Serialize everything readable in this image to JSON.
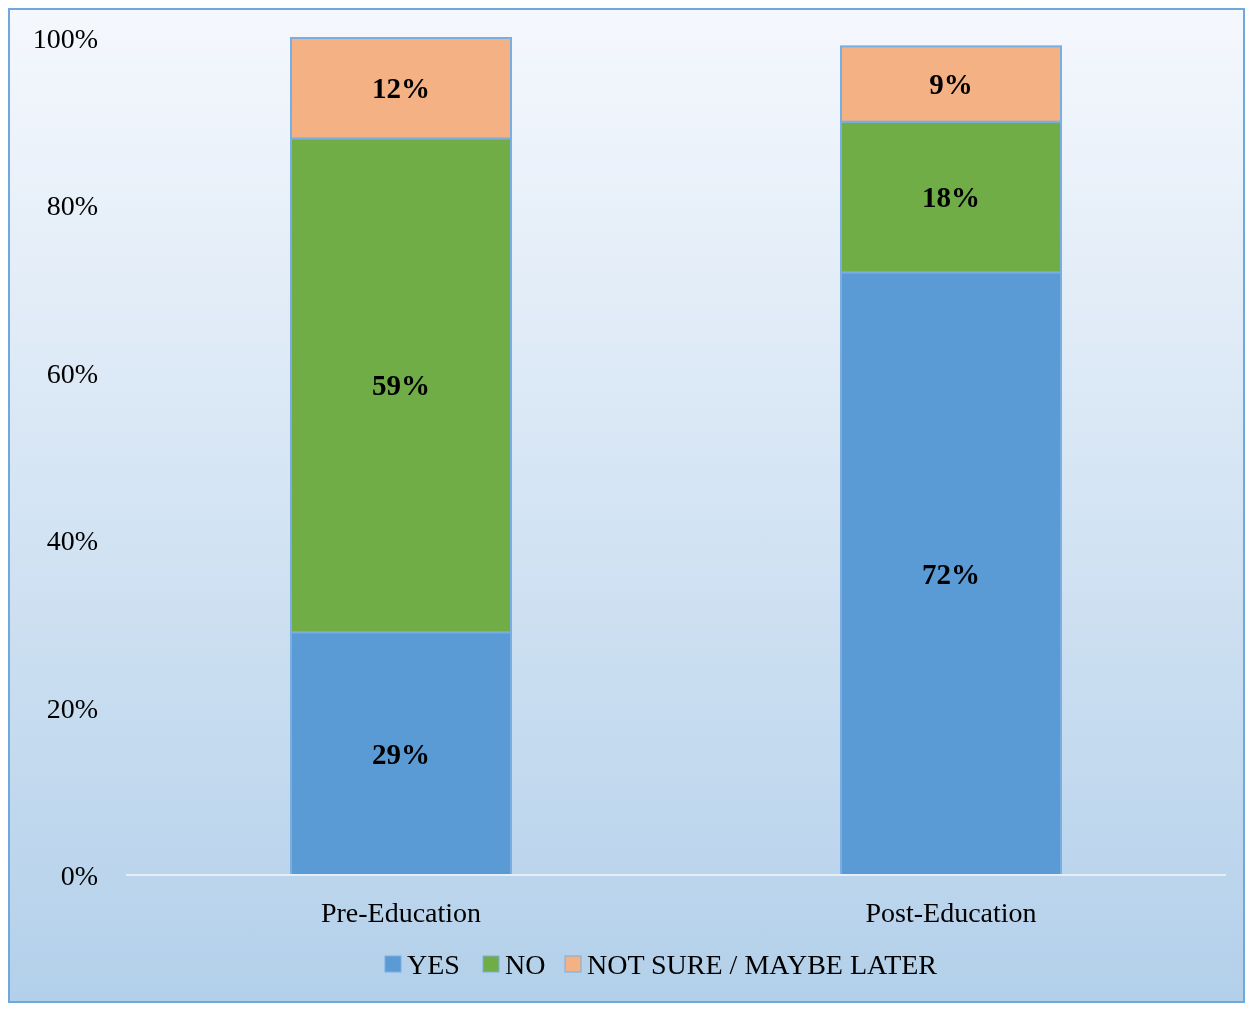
{
  "chart_data": {
    "type": "bar",
    "stacked": true,
    "categories": [
      "Pre-Education",
      "Post-Education"
    ],
    "series": [
      {
        "name": "YES",
        "color": "#5b9bd5",
        "values": [
          29,
          72
        ],
        "value_labels": [
          "29%",
          "72%"
        ]
      },
      {
        "name": "NO",
        "color": "#70ad47",
        "values": [
          59,
          18
        ],
        "value_labels": [
          "59%",
          "18%"
        ]
      },
      {
        "name": "NOT SURE / MAYBE LATER",
        "color": "#f4b183",
        "values": [
          12,
          9
        ],
        "value_labels": [
          "12%",
          "9%"
        ]
      }
    ],
    "ylim": [
      0,
      100
    ],
    "yticks": [
      {
        "value": 0,
        "label": "0%"
      },
      {
        "value": 20,
        "label": "20%"
      },
      {
        "value": 40,
        "label": "40%"
      },
      {
        "value": 60,
        "label": "60%"
      },
      {
        "value": 80,
        "label": "80%"
      },
      {
        "value": 100,
        "label": "100%"
      }
    ],
    "grid": false,
    "legend": "bottom"
  }
}
